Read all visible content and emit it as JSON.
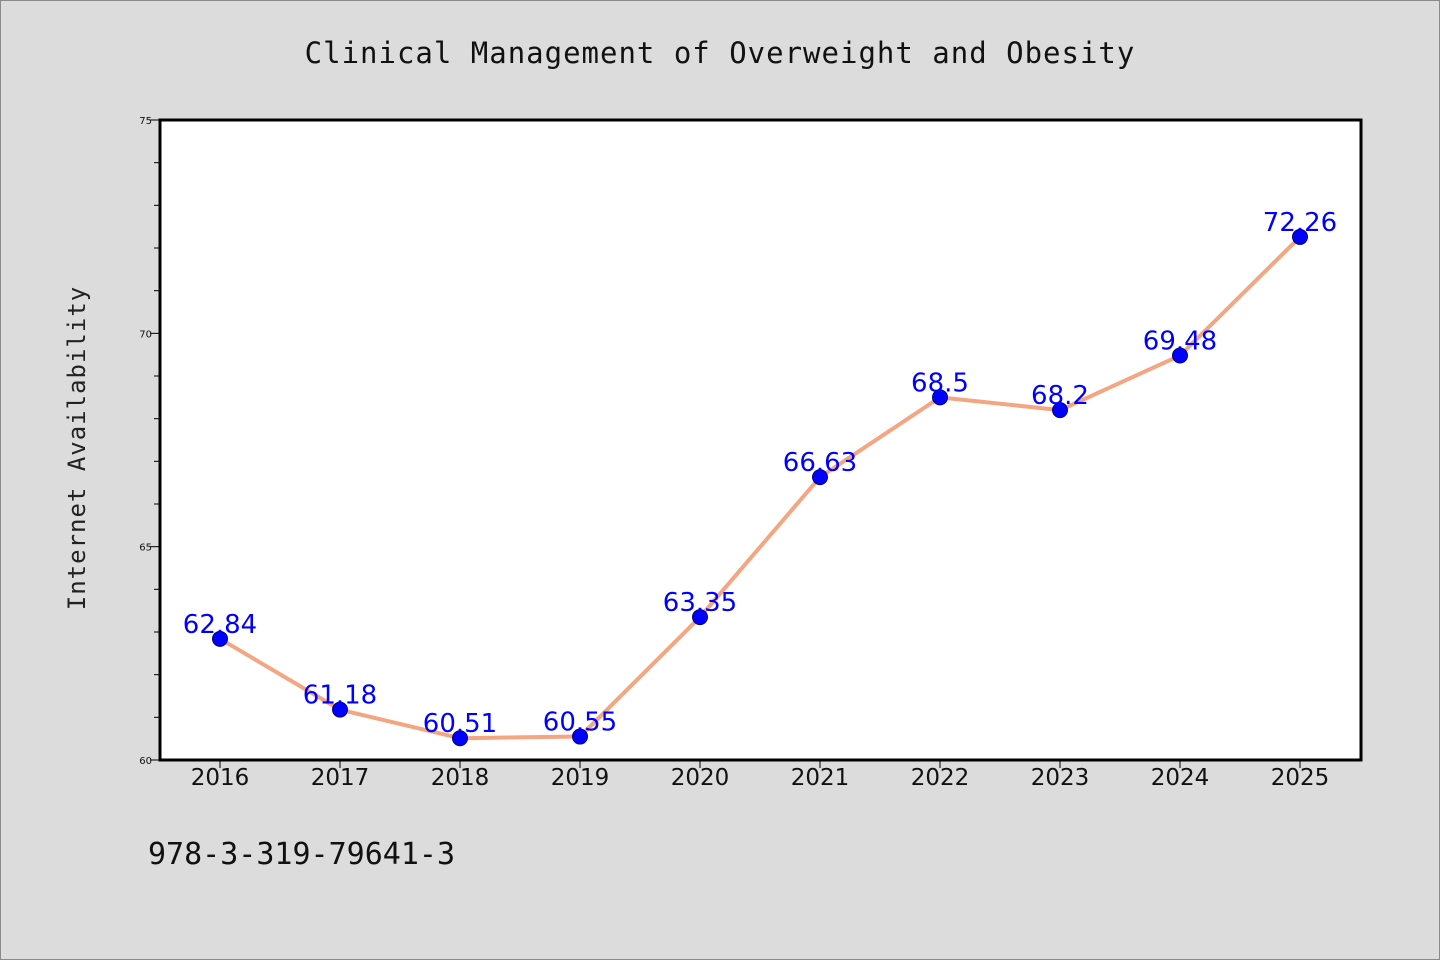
{
  "chart_data": {
    "type": "line",
    "title": "Clinical Management of Overweight and Obesity",
    "xlabel": "",
    "ylabel": "Internet Availability",
    "categories": [
      "2016",
      "2017",
      "2018",
      "2019",
      "2020",
      "2021",
      "2022",
      "2023",
      "2024",
      "2025"
    ],
    "series": [
      {
        "values": [
          62.84,
          61.18,
          60.51,
          60.55,
          63.35,
          66.63,
          68.5,
          68.2,
          69.48,
          72.26
        ],
        "data_labels": [
          "62.84",
          "61.18",
          "60.51",
          "60.55",
          "63.35",
          "66.63",
          "68.5",
          "68.2",
          "69.48",
          "72.26"
        ],
        "line_color": "#f4a582",
        "marker_color": "#0000ff",
        "label_color": "#0000ff"
      }
    ],
    "ylim": [
      60,
      75
    ],
    "yticks": [
      "60",
      "65",
      "70",
      "75"
    ],
    "yminor_step": 1,
    "grid": false,
    "legend": "none"
  },
  "footer": {
    "text": "978-3-319-79641-3"
  },
  "colors": {
    "background": "#dcdcdc",
    "plot_background": "#ffffff",
    "axis": "#000000"
  }
}
